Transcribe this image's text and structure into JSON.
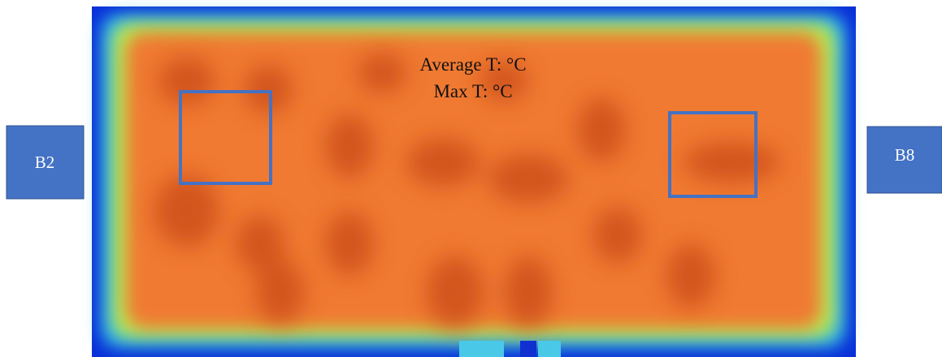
{
  "image": {
    "annotation": [
      "Average T: °C",
      "Max T: °C"
    ]
  },
  "labels": [
    "B2",
    "B8"
  ]
}
